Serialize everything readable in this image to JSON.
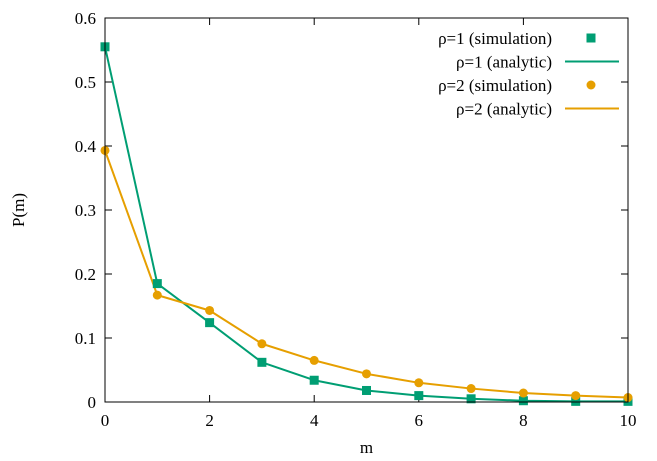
{
  "chart_data": {
    "type": "line",
    "xlabel": "m",
    "ylabel": "P(m)",
    "xlim": [
      0,
      10
    ],
    "ylim": [
      0,
      0.6
    ],
    "xticks": [
      0,
      2,
      4,
      6,
      8,
      10
    ],
    "xtick_labels": [
      "0",
      "2",
      "4",
      "6",
      "8",
      "10"
    ],
    "yticks": [
      0,
      0.1,
      0.2,
      0.3,
      0.4,
      0.5,
      0.6
    ],
    "ytick_labels": [
      "0",
      "0.1",
      "0.2",
      "0.3",
      "0.4",
      "0.5",
      "0.6"
    ],
    "legend_position": "top-right",
    "grid": false,
    "series": [
      {
        "name": "ρ=1 (simulation)",
        "kind": "scatter",
        "marker": "square",
        "color": "#009e73",
        "x": [
          0,
          1,
          2,
          3,
          4,
          5,
          6,
          7,
          8,
          9,
          10
        ],
        "y": [
          0.555,
          0.185,
          0.124,
          0.062,
          0.034,
          0.018,
          0.01,
          0.005,
          0.002,
          0.001,
          0.001
        ]
      },
      {
        "name": "ρ=1 (analytic)",
        "kind": "line",
        "color": "#009e73",
        "x": [
          0,
          1,
          2,
          3,
          4,
          5,
          6,
          7,
          8,
          9,
          10
        ],
        "y": [
          0.555,
          0.185,
          0.124,
          0.062,
          0.034,
          0.018,
          0.01,
          0.005,
          0.002,
          0.001,
          0.001
        ]
      },
      {
        "name": "ρ=2 (simulation)",
        "kind": "scatter",
        "marker": "circle",
        "color": "#e69f00",
        "x": [
          0,
          1,
          2,
          3,
          4,
          5,
          6,
          7,
          8,
          9,
          10
        ],
        "y": [
          0.393,
          0.167,
          0.143,
          0.091,
          0.065,
          0.044,
          0.03,
          0.021,
          0.014,
          0.01,
          0.007
        ]
      },
      {
        "name": "ρ=2 (analytic)",
        "kind": "line",
        "color": "#e69f00",
        "x": [
          0,
          1,
          2,
          3,
          4,
          5,
          6,
          7,
          8,
          9,
          10
        ],
        "y": [
          0.393,
          0.167,
          0.143,
          0.091,
          0.065,
          0.044,
          0.03,
          0.021,
          0.014,
          0.01,
          0.007
        ]
      }
    ]
  }
}
